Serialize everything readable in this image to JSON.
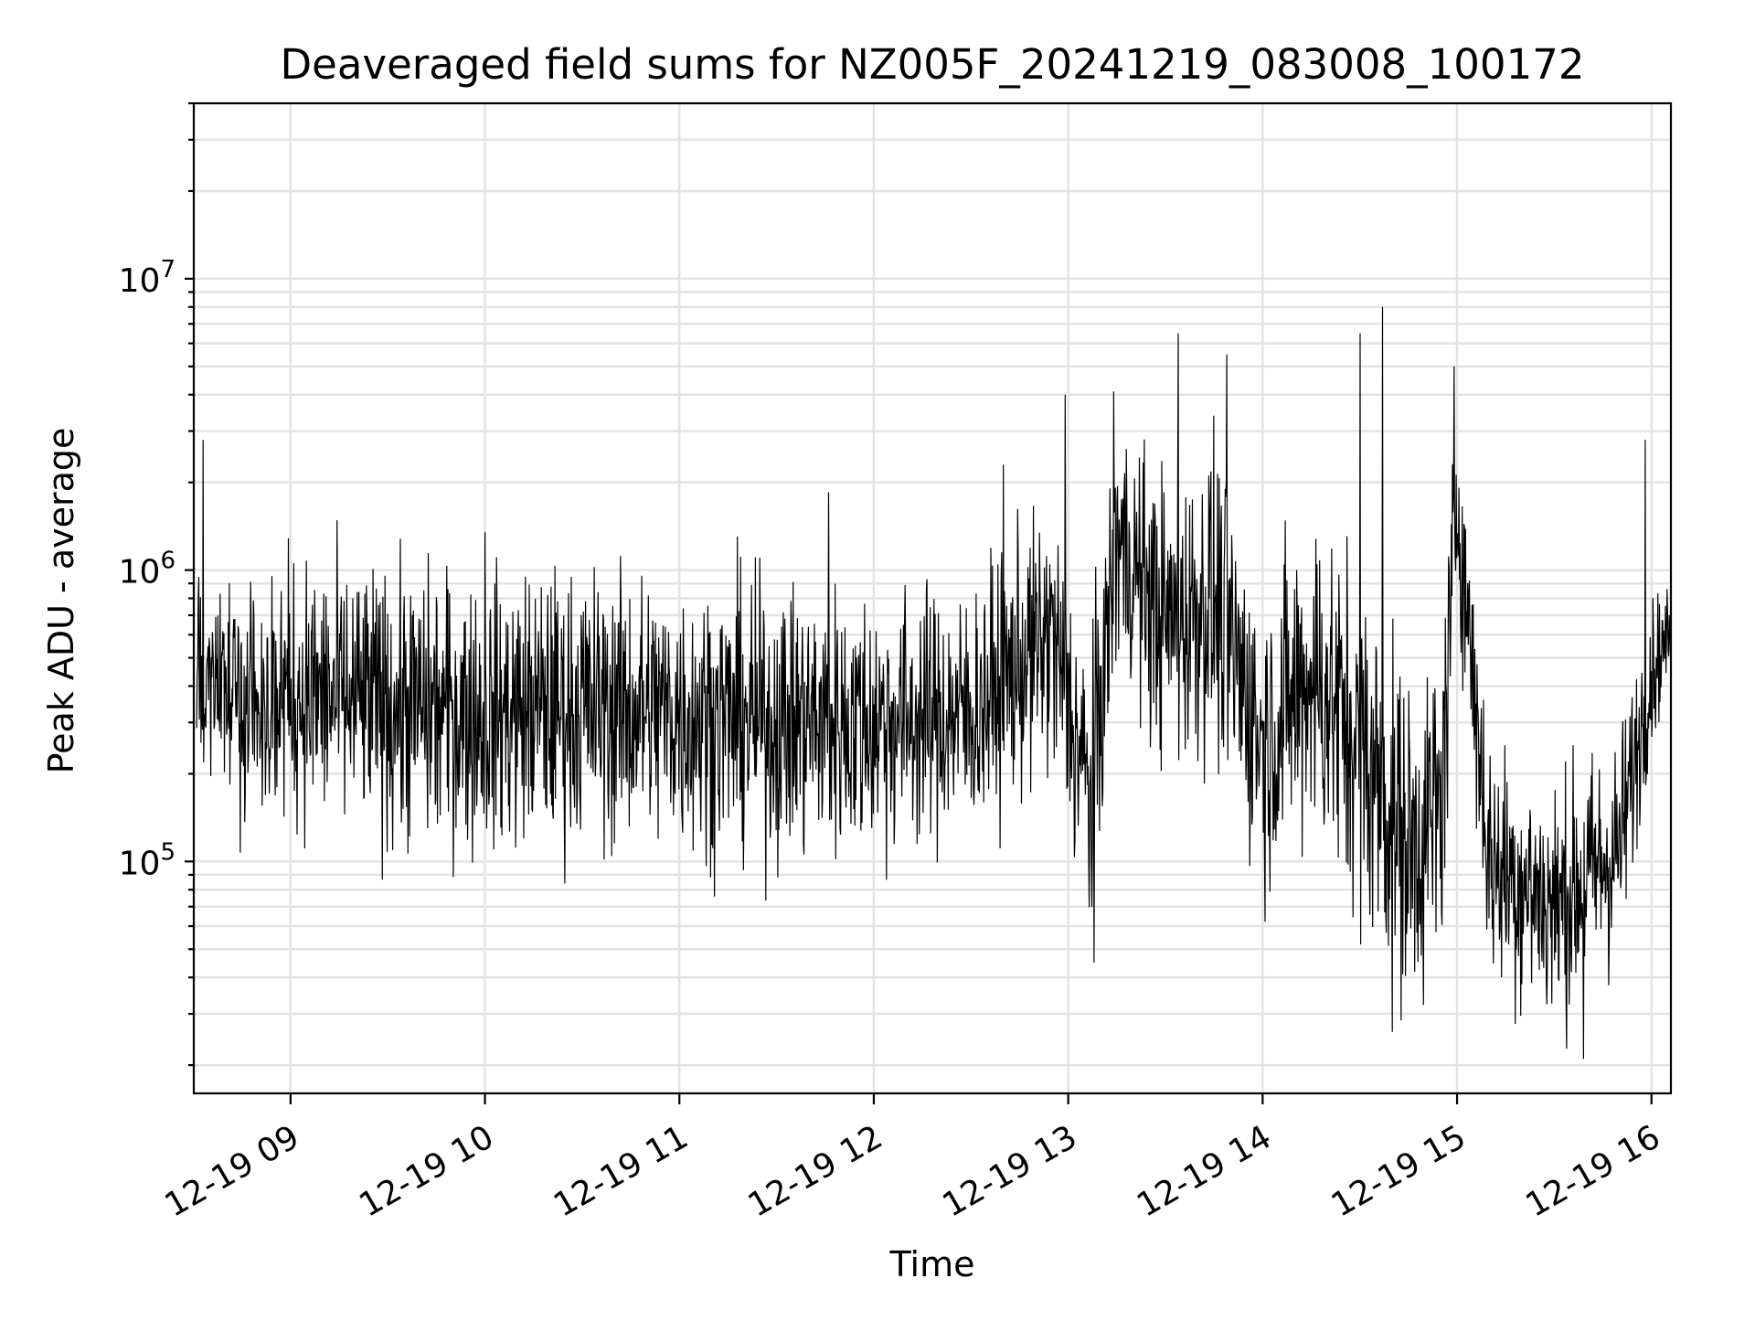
{
  "chart_data": {
    "type": "line",
    "title": "Deaveraged field sums for NZ005F_20241219_083008_100172",
    "xlabel": "Time",
    "ylabel": "Peak ADU - average",
    "yscale": "log",
    "xlim": [
      "2024-12-19T08:30:08",
      "2024-12-19T16:06:00"
    ],
    "ylim": [
      16000,
      40000000
    ],
    "grid": true,
    "line_color": "#000000",
    "x_ticks": [
      {
        "time": "2024-12-19T09:00:00",
        "label": "12-19 09"
      },
      {
        "time": "2024-12-19T10:00:00",
        "label": "12-19 10"
      },
      {
        "time": "2024-12-19T11:00:00",
        "label": "12-19 11"
      },
      {
        "time": "2024-12-19T12:00:00",
        "label": "12-19 12"
      },
      {
        "time": "2024-12-19T13:00:00",
        "label": "12-19 13"
      },
      {
        "time": "2024-12-19T14:00:00",
        "label": "12-19 14"
      },
      {
        "time": "2024-12-19T15:00:00",
        "label": "12-19 15"
      },
      {
        "time": "2024-12-19T16:00:00",
        "label": "12-19 16"
      }
    ],
    "y_ticks": [
      {
        "value": 100000,
        "base": "10",
        "exp": "5"
      },
      {
        "value": 1000000,
        "base": "10",
        "exp": "6"
      },
      {
        "value": 10000000,
        "base": "10",
        "exp": "7"
      }
    ],
    "trend": [
      {
        "time": "2024-12-19T08:31:00",
        "median": 420000,
        "spread": 0.32
      },
      {
        "time": "2024-12-19T09:00:00",
        "median": 380000,
        "spread": 0.32
      },
      {
        "time": "2024-12-19T09:30:00",
        "median": 340000,
        "spread": 0.33
      },
      {
        "time": "2024-12-19T10:00:00",
        "median": 320000,
        "spread": 0.33
      },
      {
        "time": "2024-12-19T10:30:00",
        "median": 340000,
        "spread": 0.33
      },
      {
        "time": "2024-12-19T11:00:00",
        "median": 320000,
        "spread": 0.33
      },
      {
        "time": "2024-12-19T11:30:00",
        "median": 300000,
        "spread": 0.33
      },
      {
        "time": "2024-12-19T12:00:00",
        "median": 300000,
        "spread": 0.32
      },
      {
        "time": "2024-12-19T12:30:00",
        "median": 320000,
        "spread": 0.3
      },
      {
        "time": "2024-12-19T12:55:00",
        "median": 600000,
        "spread": 0.32
      },
      {
        "time": "2024-12-19T13:07:00",
        "median": 160000,
        "spread": 0.35
      },
      {
        "time": "2024-12-19T13:15:00",
        "median": 1300000,
        "spread": 0.3
      },
      {
        "time": "2024-12-19T13:30:00",
        "median": 650000,
        "spread": 0.35
      },
      {
        "time": "2024-12-19T13:45:00",
        "median": 800000,
        "spread": 0.38
      },
      {
        "time": "2024-12-19T14:00:00",
        "median": 250000,
        "spread": 0.35
      },
      {
        "time": "2024-12-19T14:15:00",
        "median": 450000,
        "spread": 0.4
      },
      {
        "time": "2024-12-19T14:30:00",
        "median": 250000,
        "spread": 0.42
      },
      {
        "time": "2024-12-19T14:45:00",
        "median": 110000,
        "spread": 0.4
      },
      {
        "time": "2024-12-19T14:55:00",
        "median": 150000,
        "spread": 0.4
      },
      {
        "time": "2024-12-19T15:00:00",
        "median": 1800000,
        "spread": 0.25
      },
      {
        "time": "2024-12-19T15:10:00",
        "median": 100000,
        "spread": 0.3
      },
      {
        "time": "2024-12-19T15:30:00",
        "median": 70000,
        "spread": 0.3
      },
      {
        "time": "2024-12-19T15:50:00",
        "median": 110000,
        "spread": 0.28
      },
      {
        "time": "2024-12-19T16:00:00",
        "median": 450000,
        "spread": 0.18
      },
      {
        "time": "2024-12-19T16:06:00",
        "median": 620000,
        "spread": 0.1
      }
    ],
    "peaks": [
      {
        "time": "2024-12-19T08:33:00",
        "value": 2800000
      },
      {
        "time": "2024-12-19T10:00:00",
        "value": 1350000
      },
      {
        "time": "2024-12-19T11:46:00",
        "value": 1850000
      },
      {
        "time": "2024-12-19T12:40:00",
        "value": 2300000
      },
      {
        "time": "2024-12-19T12:59:00",
        "value": 4000000
      },
      {
        "time": "2024-12-19T13:14:00",
        "value": 4100000
      },
      {
        "time": "2024-12-19T13:34:00",
        "value": 6500000
      },
      {
        "time": "2024-12-19T13:49:00",
        "value": 5500000
      },
      {
        "time": "2024-12-19T14:30:00",
        "value": 6500000
      },
      {
        "time": "2024-12-19T14:37:00",
        "value": 8000000
      },
      {
        "time": "2024-12-19T14:59:00",
        "value": 5000000
      },
      {
        "time": "2024-12-19T15:58:00",
        "value": 2800000
      }
    ],
    "troughs": [
      {
        "time": "2024-12-19T13:08:00",
        "value": 45000
      },
      {
        "time": "2024-12-19T14:40:00",
        "value": 26000
      },
      {
        "time": "2024-12-19T15:39:00",
        "value": 21000
      }
    ]
  }
}
